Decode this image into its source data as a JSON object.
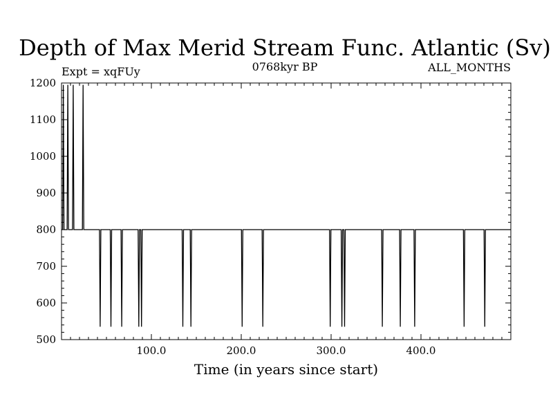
{
  "chart_data": {
    "type": "line",
    "title": "Depth of Max Merid Stream Func. Atlantic (Sv)",
    "subtitle_left": "Expt = xqFUy",
    "subtitle_center": "0768kyr BP",
    "subtitle_right": "ALL_MONTHS",
    "xlabel": "Time (in years since start)",
    "ylabel": "",
    "xlim": [
      0,
      500
    ],
    "ylim": [
      500,
      1200
    ],
    "x_ticks": [
      100,
      200,
      300,
      400
    ],
    "x_tick_labels": [
      "100.0",
      "200.0",
      "300.0",
      "400.0"
    ],
    "y_ticks": [
      500,
      600,
      700,
      800,
      900,
      1000,
      1100,
      1200
    ],
    "y_tick_labels": [
      "500",
      "600",
      "700",
      "800",
      "900",
      "1000",
      "1100",
      "1200"
    ],
    "grid": false,
    "line_color": "#000000",
    "baseline_value": 800,
    "high_spikes": [
      {
        "x": 2,
        "value": 1195
      },
      {
        "x": 7,
        "value": 1195
      },
      {
        "x": 13,
        "value": 1195
      },
      {
        "x": 24,
        "value": 1195
      }
    ],
    "low_spikes": [
      {
        "x": 43,
        "value": 535
      },
      {
        "x": 55,
        "value": 535
      },
      {
        "x": 67,
        "value": 535
      },
      {
        "x": 86,
        "value": 535
      },
      {
        "x": 89,
        "value": 535
      },
      {
        "x": 135,
        "value": 535
      },
      {
        "x": 144,
        "value": 535
      },
      {
        "x": 201,
        "value": 535
      },
      {
        "x": 224,
        "value": 535
      },
      {
        "x": 299,
        "value": 535
      },
      {
        "x": 312,
        "value": 535
      },
      {
        "x": 315,
        "value": 535
      },
      {
        "x": 357,
        "value": 535
      },
      {
        "x": 377,
        "value": 535
      },
      {
        "x": 393,
        "value": 535
      },
      {
        "x": 448,
        "value": 535
      },
      {
        "x": 471,
        "value": 535
      }
    ]
  }
}
